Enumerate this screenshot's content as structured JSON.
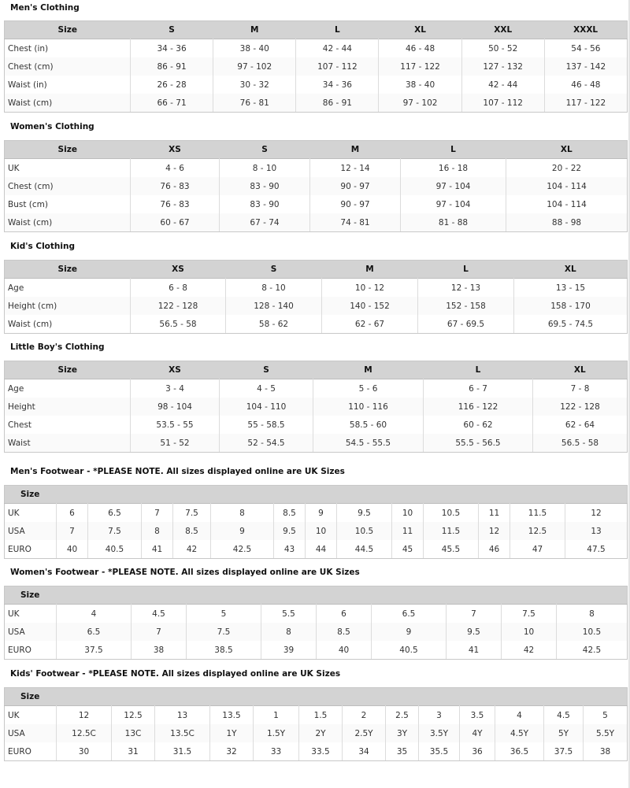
{
  "sections": {
    "mens_clothing": {
      "title": "Men's Clothing",
      "headers": [
        "Size",
        "S",
        "M",
        "L",
        "XL",
        "XXL",
        "XXXL"
      ],
      "rows": [
        [
          "Chest (in)",
          "34 - 36",
          "38 - 40",
          "42 - 44",
          "46 - 48",
          "50 - 52",
          "54 - 56"
        ],
        [
          "Chest (cm)",
          "86 - 91",
          "97 - 102",
          "107 - 112",
          "117 - 122",
          "127 - 132",
          "137 - 142"
        ],
        [
          "Waist (in)",
          "26 - 28",
          "30 - 32",
          "34 - 36",
          "38 - 40",
          "42 - 44",
          "46 - 48"
        ],
        [
          "Waist (cm)",
          "66 - 71",
          "76 - 81",
          "86 - 91",
          "97 - 102",
          "107 - 112",
          "117 - 122"
        ]
      ]
    },
    "womens_clothing": {
      "title": "Women's Clothing",
      "headers": [
        "Size",
        "XS",
        "S",
        "M",
        "L",
        "XL"
      ],
      "rows": [
        [
          "UK",
          "4 - 6",
          "8 - 10",
          "12 - 14",
          "16 - 18",
          "20 - 22"
        ],
        [
          "Chest (cm)",
          "76 - 83",
          "83 - 90",
          "90 - 97",
          "97 - 104",
          "104 - 114"
        ],
        [
          "Bust (cm)",
          "76 - 83",
          "83 - 90",
          "90 - 97",
          "97 - 104",
          "104 - 114"
        ],
        [
          "Waist (cm)",
          "60 - 67",
          "67 - 74",
          "74 - 81",
          "81 - 88",
          "88 - 98"
        ]
      ]
    },
    "kids_clothing": {
      "title": "Kid's Clothing",
      "headers": [
        "Size",
        "XS",
        "S",
        "M",
        "L",
        "XL"
      ],
      "rows": [
        [
          "Age",
          "6 - 8",
          "8 - 10",
          "10 - 12",
          "12 - 13",
          "13 - 15"
        ],
        [
          "Height (cm)",
          "122 - 128",
          "128 - 140",
          "140 - 152",
          "152 - 158",
          "158 - 170"
        ],
        [
          "Waist (cm)",
          "56.5 - 58",
          "58 - 62",
          "62 - 67",
          "67 - 69.5",
          "69.5 - 74.5"
        ]
      ]
    },
    "little_boys_clothing": {
      "title": "Little Boy's Clothing",
      "headers": [
        "Size",
        "XS",
        "S",
        "M",
        "L",
        "XL"
      ],
      "rows": [
        [
          "Age",
          "3 - 4",
          "4 - 5",
          "5 - 6",
          "6 - 7",
          "7 - 8"
        ],
        [
          "Height",
          "98 - 104",
          "104 - 110",
          "110 - 116",
          "116 - 122",
          "122 - 128"
        ],
        [
          "Chest",
          "53.5 - 55",
          "55 - 58.5",
          "58.5 - 60",
          "60 - 62",
          "62 - 64"
        ],
        [
          "Waist",
          "51 - 52",
          "52 - 54.5",
          "54.5 - 55.5",
          "55.5 - 56.5",
          "56.5 - 58"
        ]
      ]
    },
    "mens_footwear": {
      "title": "Men's Footwear - *PLEASE NOTE. All sizes displayed online are UK Sizes",
      "size_label": "Size",
      "rows": [
        [
          "UK",
          "6",
          "6.5",
          "7",
          "7.5",
          "8",
          "8.5",
          "9",
          "9.5",
          "10",
          "10.5",
          "11",
          "11.5",
          "12"
        ],
        [
          "USA",
          "7",
          "7.5",
          "8",
          "8.5",
          "9",
          "9.5",
          "10",
          "10.5",
          "11",
          "11.5",
          "12",
          "12.5",
          "13"
        ],
        [
          "EURO",
          "40",
          "40.5",
          "41",
          "42",
          "42.5",
          "43",
          "44",
          "44.5",
          "45",
          "45.5",
          "46",
          "47",
          "47.5"
        ]
      ]
    },
    "womens_footwear": {
      "title": "Women's Footwear - *PLEASE NOTE. All sizes displayed online are UK Sizes",
      "size_label": "Size",
      "rows": [
        [
          "UK",
          "4",
          "4.5",
          "5",
          "5.5",
          "6",
          "6.5",
          "7",
          "7.5",
          "8"
        ],
        [
          "USA",
          "6.5",
          "7",
          "7.5",
          "8",
          "8.5",
          "9",
          "9.5",
          "10",
          "10.5"
        ],
        [
          "EURO",
          "37.5",
          "38",
          "38.5",
          "39",
          "40",
          "40.5",
          "41",
          "42",
          "42.5"
        ]
      ]
    },
    "kids_footwear": {
      "title": "Kids' Footwear - *PLEASE NOTE. All sizes displayed online are UK Sizes",
      "size_label": "Size",
      "rows": [
        [
          "UK",
          "12",
          "12.5",
          "13",
          "13.5",
          "1",
          "1.5",
          "2",
          "2.5",
          "3",
          "3.5",
          "4",
          "4.5",
          "5"
        ],
        [
          "USA",
          "12.5C",
          "13C",
          "13.5C",
          "1Y",
          "1.5Y",
          "2Y",
          "2.5Y",
          "3Y",
          "3.5Y",
          "4Y",
          "4.5Y",
          "5Y",
          "5.5Y"
        ],
        [
          "EURO",
          "30",
          "31",
          "31.5",
          "32",
          "33",
          "33.5",
          "34",
          "35",
          "35.5",
          "36",
          "36.5",
          "37.5",
          "38"
        ]
      ]
    }
  }
}
